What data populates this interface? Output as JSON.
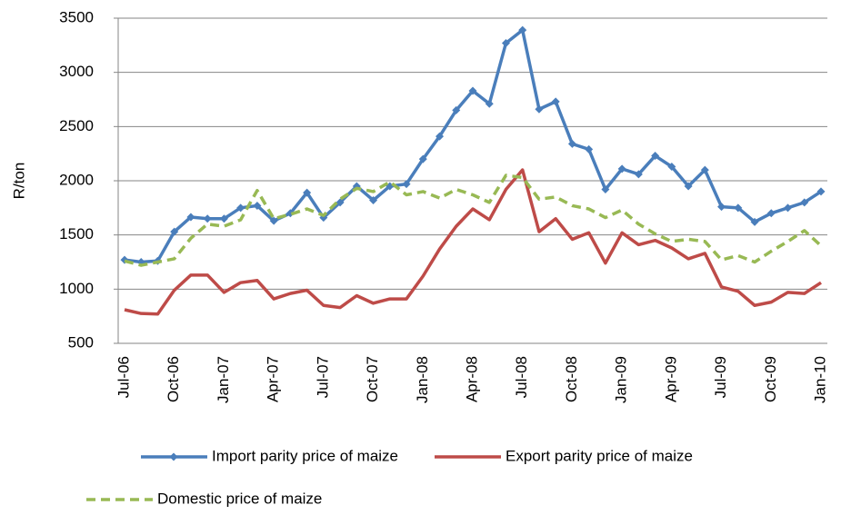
{
  "chart_data": {
    "type": "line",
    "y_label": "R/ton",
    "categories": [
      "Jul-06",
      null,
      null,
      "Oct-06",
      null,
      null,
      "Jan-07",
      null,
      null,
      "Apr-07",
      null,
      null,
      "Jul-07",
      null,
      null,
      "Oct-07",
      null,
      null,
      "Jan-08",
      null,
      null,
      "Apr-08",
      null,
      null,
      "Jul-08",
      null,
      null,
      "Oct-08",
      null,
      null,
      "Jan-09",
      null,
      null,
      "Apr-09",
      null,
      null,
      "Jul-09",
      null,
      null,
      "Oct-09",
      null,
      null,
      "Jan-10"
    ],
    "series": [
      {
        "name": "Import parity price of maize",
        "color": "#4a7ebb",
        "style": "solid",
        "markers": true,
        "values": [
          1270,
          1250,
          1260,
          1530,
          1665,
          1650,
          1650,
          1750,
          1770,
          1630,
          1700,
          1890,
          1660,
          1800,
          1950,
          1820,
          1950,
          1970,
          2200,
          2410,
          2650,
          2830,
          2710,
          3270,
          3390,
          2660,
          2730,
          2340,
          2290,
          1920,
          2110,
          2060,
          2230,
          2130,
          1950,
          2100,
          1760,
          1750,
          1620,
          1700,
          1750,
          1800,
          1900
        ]
      },
      {
        "name": "Export parity price of maize",
        "color": "#be4b48",
        "style": "solid",
        "markers": false,
        "values": [
          810,
          775,
          770,
          990,
          1130,
          1130,
          970,
          1060,
          1080,
          910,
          960,
          990,
          850,
          830,
          940,
          870,
          910,
          910,
          1120,
          1370,
          1580,
          1740,
          1640,
          1920,
          2100,
          1530,
          1650,
          1460,
          1520,
          1240,
          1520,
          1410,
          1450,
          1380,
          1280,
          1330,
          1020,
          980,
          850,
          880,
          970,
          960,
          1060
        ]
      },
      {
        "name": "Domestic price of maize",
        "color": "#98b954",
        "style": "dashed",
        "markers": false,
        "values": [
          1260,
          1220,
          1250,
          1280,
          1470,
          1600,
          1580,
          1640,
          1910,
          1650,
          1690,
          1740,
          1680,
          1830,
          1930,
          1900,
          1990,
          1870,
          1900,
          1840,
          1920,
          1870,
          1800,
          2050,
          2030,
          1830,
          1850,
          1770,
          1740,
          1660,
          1730,
          1600,
          1510,
          1440,
          1460,
          1440,
          1270,
          1310,
          1250,
          1350,
          1440,
          1540,
          1400
        ]
      }
    ],
    "ylim": [
      500,
      3500
    ],
    "yticks": [
      500,
      1000,
      1500,
      2000,
      2500,
      3000,
      3500
    ],
    "grid": true,
    "legend": "bottom"
  }
}
